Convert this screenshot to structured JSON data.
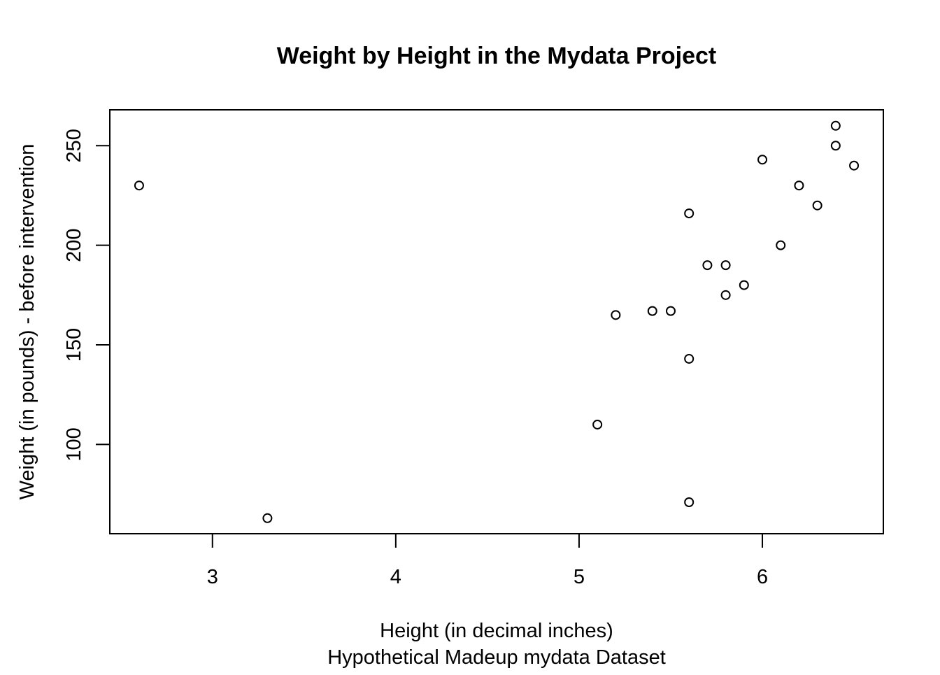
{
  "chart_data": {
    "type": "scatter",
    "title": "Weight by Height in the Mydata Project",
    "xlabel": "Height (in decimal inches)",
    "subtitle": "Hypothetical Madeup mydata Dataset",
    "ylabel": "Weight (in pounds) - before intervention",
    "xlim": [
      2.44,
      6.66
    ],
    "ylim": [
      55.2,
      268
    ],
    "xticks": [
      3,
      4,
      5,
      6
    ],
    "yticks": [
      100,
      150,
      200,
      250
    ],
    "grid": false,
    "points": [
      {
        "x": 2.6,
        "y": 230
      },
      {
        "x": 3.3,
        "y": 63
      },
      {
        "x": 5.1,
        "y": 110
      },
      {
        "x": 5.2,
        "y": 165
      },
      {
        "x": 5.4,
        "y": 167
      },
      {
        "x": 5.5,
        "y": 167
      },
      {
        "x": 5.6,
        "y": 143
      },
      {
        "x": 5.6,
        "y": 216
      },
      {
        "x": 5.6,
        "y": 71
      },
      {
        "x": 5.7,
        "y": 190
      },
      {
        "x": 5.8,
        "y": 190
      },
      {
        "x": 5.8,
        "y": 175
      },
      {
        "x": 5.9,
        "y": 180
      },
      {
        "x": 6.0,
        "y": 243
      },
      {
        "x": 6.1,
        "y": 200
      },
      {
        "x": 6.2,
        "y": 230
      },
      {
        "x": 6.3,
        "y": 220
      },
      {
        "x": 6.4,
        "y": 260
      },
      {
        "x": 6.4,
        "y": 250
      },
      {
        "x": 6.5,
        "y": 240
      }
    ]
  }
}
